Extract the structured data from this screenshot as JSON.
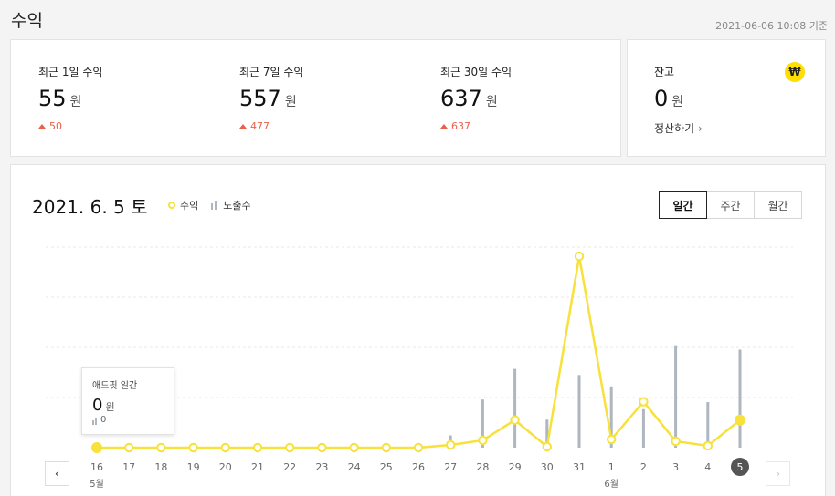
{
  "page": {
    "title": "수익",
    "updated": "2021-06-06 10:08 기준"
  },
  "summary": [
    {
      "label": "최근 1일 수익",
      "value": "55",
      "unit": "원",
      "delta": "50"
    },
    {
      "label": "최근 7일 수익",
      "value": "557",
      "unit": "원",
      "delta": "477"
    },
    {
      "label": "최근 30일 수익",
      "value": "637",
      "unit": "원",
      "delta": "637"
    }
  ],
  "balance": {
    "label": "잔고",
    "badge": "₩",
    "value": "0",
    "unit": "원",
    "settle_label": "정산하기"
  },
  "chart_header": {
    "date": "2021. 6. 5 토",
    "legend_revenue": "수익",
    "legend_impressions": "노출수",
    "tabs": [
      "일간",
      "주간",
      "월간"
    ],
    "active_tab": 0
  },
  "tooltip": {
    "title": "애드핏 일간",
    "value": "0",
    "unit": "원",
    "impressions": "0"
  },
  "nav": {
    "prev": "‹",
    "next": "›"
  },
  "colors": {
    "revenue_line": "#f7e13a",
    "impression_bar": "#aeb6bf",
    "delta_up": "#e8614b",
    "active_day": "#555555"
  },
  "chart_data": {
    "type": "line",
    "x": [
      "16",
      "17",
      "18",
      "19",
      "20",
      "21",
      "22",
      "23",
      "24",
      "25",
      "26",
      "27",
      "28",
      "29",
      "30",
      "31",
      "1",
      "2",
      "3",
      "4",
      "5"
    ],
    "month_labels": [
      {
        "index": 0,
        "label": "5월"
      },
      {
        "index": 16,
        "label": "6월"
      }
    ],
    "series": [
      {
        "name": "수익",
        "type": "line",
        "values": [
          0,
          0,
          0,
          0,
          0,
          0,
          0,
          0,
          0,
          0,
          0,
          3,
          8,
          30,
          1,
          208,
          9,
          50,
          7,
          2,
          30
        ]
      },
      {
        "name": "노출수",
        "type": "bar",
        "values": [
          0,
          0,
          0,
          0,
          0,
          0,
          0,
          0,
          0,
          0,
          0,
          14,
          55,
          90,
          32,
          83,
          70,
          44,
          117,
          52,
          112
        ]
      }
    ],
    "selected_index": 0,
    "active_index": 20,
    "grid": true
  }
}
